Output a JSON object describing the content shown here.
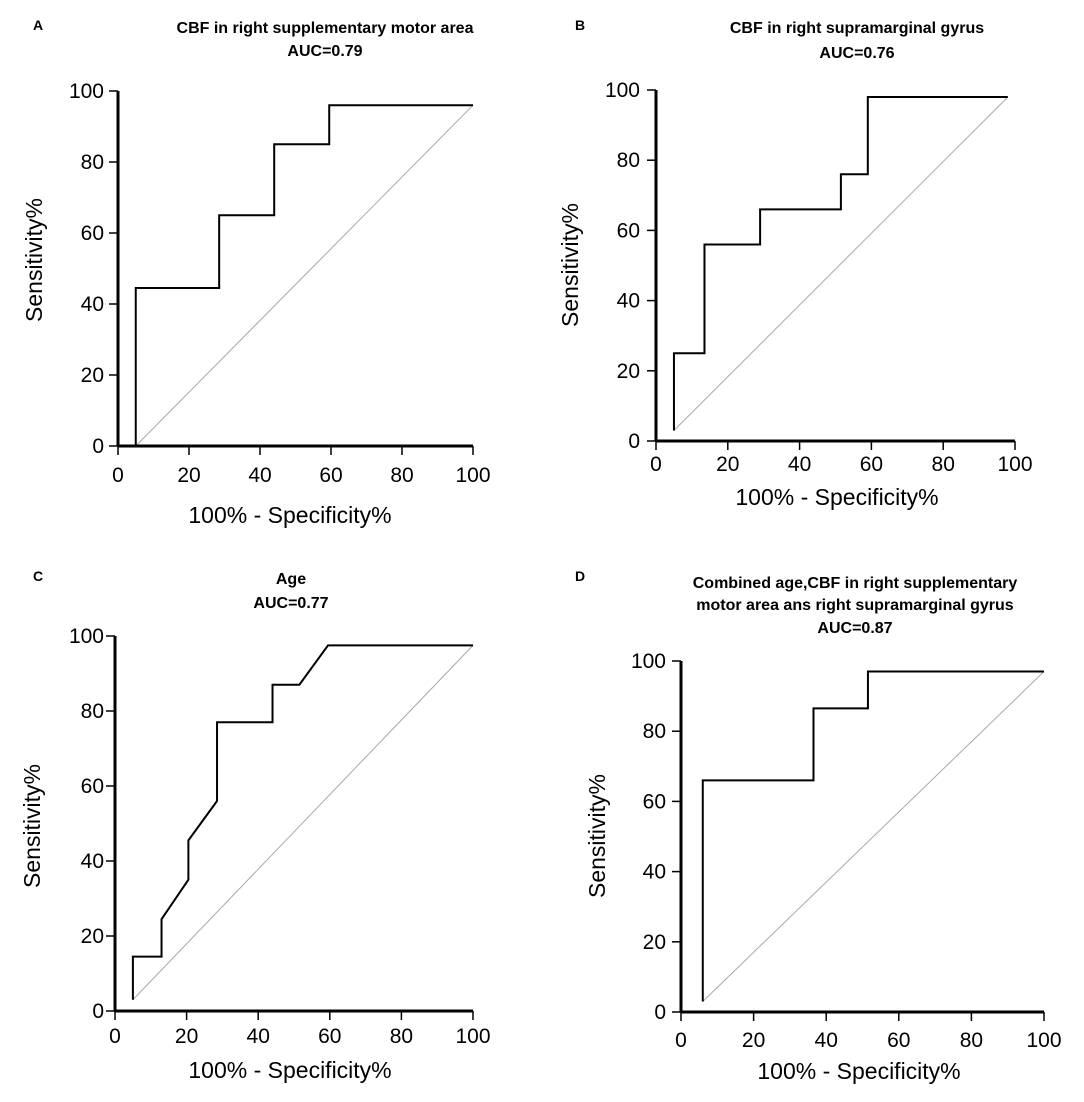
{
  "chart_data": [
    {
      "type": "line",
      "panel_label": "A",
      "title": [
        "CBF in right supplementary motor area",
        "AUC=0.79"
      ],
      "xlabel": "100% - Specificity%",
      "ylabel": "Sensitivity%",
      "xlim": [
        0,
        100
      ],
      "ylim": [
        0,
        100
      ],
      "x_ticks": [
        "0",
        "20",
        "40",
        "60",
        "80",
        "100"
      ],
      "y_ticks": [
        "0",
        "20",
        "40",
        "60",
        "80",
        "100"
      ],
      "series": [
        {
          "name": "ROC",
          "x": [
            5,
            5,
            28.5,
            28.5,
            44,
            44,
            59.5,
            59.5,
            100
          ],
          "y": [
            0,
            44.5,
            44.5,
            65,
            65,
            85,
            85,
            96,
            96
          ]
        },
        {
          "name": "Reference",
          "x": [
            5,
            100
          ],
          "y": [
            0,
            96
          ]
        }
      ]
    },
    {
      "type": "line",
      "panel_label": "B",
      "title": [
        "CBF in right supramarginal gyrus",
        "AUC=0.76"
      ],
      "xlabel": "100% - Specificity%",
      "ylabel": "Sensitivity%",
      "xlim": [
        0,
        100
      ],
      "ylim": [
        0,
        100
      ],
      "x_ticks": [
        "0",
        "20",
        "40",
        "60",
        "80",
        "100"
      ],
      "y_ticks": [
        "0",
        "20",
        "40",
        "60",
        "80",
        "100"
      ],
      "series": [
        {
          "name": "ROC",
          "x": [
            5,
            5,
            13.5,
            13.5,
            29,
            29,
            51.5,
            51.5,
            59,
            59,
            98
          ],
          "y": [
            3,
            25,
            25,
            56,
            56,
            66,
            66,
            76,
            76,
            98,
            98
          ]
        },
        {
          "name": "Reference",
          "x": [
            5,
            98
          ],
          "y": [
            3,
            98
          ]
        }
      ]
    },
    {
      "type": "line",
      "panel_label": "C",
      "title": [
        "Age",
        "AUC=0.77"
      ],
      "xlabel": "100% - Specificity%",
      "ylabel": "Sensitivity%",
      "xlim": [
        0,
        100
      ],
      "ylim": [
        0,
        100
      ],
      "x_ticks": [
        "0",
        "20",
        "40",
        "60",
        "80",
        "100"
      ],
      "y_ticks": [
        "0",
        "20",
        "40",
        "60",
        "80",
        "100"
      ],
      "series": [
        {
          "name": "ROC",
          "x": [
            5,
            5,
            13,
            13,
            20.5,
            20.5,
            28.5,
            28.5,
            44,
            44,
            51.5,
            59.5,
            100
          ],
          "y": [
            3,
            14.5,
            14.5,
            24.5,
            35,
            45.5,
            56,
            77,
            77,
            87,
            87,
            97.5,
            97.5
          ]
        },
        {
          "name": "Reference",
          "x": [
            5,
            100
          ],
          "y": [
            3,
            97.5
          ]
        }
      ]
    },
    {
      "type": "line",
      "panel_label": "D",
      "title": [
        "Combined age,CBF in right supplementary",
        "motor area ans right supramarginal gyrus",
        "AUC=0.87"
      ],
      "xlabel": "100% - Specificity%",
      "ylabel": "Sensitivity%",
      "xlim": [
        0,
        100
      ],
      "ylim": [
        0,
        100
      ],
      "x_ticks": [
        "0",
        "20",
        "40",
        "60",
        "80",
        "100"
      ],
      "y_ticks": [
        "0",
        "20",
        "40",
        "60",
        "80",
        "100"
      ],
      "series": [
        {
          "name": "ROC",
          "x": [
            6,
            6,
            36.5,
            36.5,
            51.5,
            51.5,
            100
          ],
          "y": [
            3,
            66,
            66,
            86.5,
            86.5,
            97,
            97
          ]
        },
        {
          "name": "Reference",
          "x": [
            6,
            100
          ],
          "y": [
            3,
            97
          ]
        }
      ]
    }
  ]
}
